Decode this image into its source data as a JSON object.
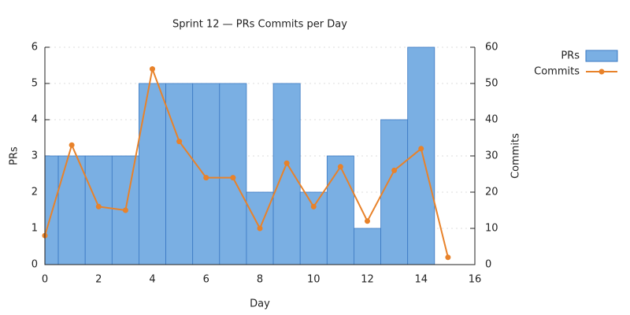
{
  "chart_data": {
    "type": "combo",
    "title": "Sprint 12 — PRs  Commits per Day",
    "xlabel": "Day",
    "ylabel": "PRs",
    "y2label": "Commits",
    "xlim": [
      0,
      16
    ],
    "xticks": [
      0,
      2,
      4,
      6,
      8,
      10,
      12,
      14,
      16
    ],
    "ylim": [
      0,
      6
    ],
    "yticks": [
      0,
      1,
      2,
      3,
      4,
      5,
      6
    ],
    "y2lim": [
      0,
      60
    ],
    "y2ticks": [
      0,
      10,
      20,
      30,
      40,
      50,
      60
    ],
    "grid": true,
    "legend": "outside-right",
    "series": [
      {
        "name": "PRs",
        "type": "bar",
        "color": "#7aafe3",
        "x": [
          0,
          1,
          2,
          3,
          4,
          5,
          6,
          7,
          8,
          9,
          10,
          11,
          12,
          13,
          14
        ],
        "values": [
          3,
          3,
          3,
          3,
          5,
          5,
          5,
          5,
          2,
          5,
          2,
          3,
          1,
          4,
          6
        ]
      },
      {
        "name": "Commits",
        "type": "line",
        "axis": "y2",
        "color": "#e8822a",
        "x": [
          0,
          1,
          2,
          3,
          4,
          5,
          6,
          7,
          8,
          9,
          10,
          11,
          12,
          13,
          14,
          15
        ],
        "values": [
          8,
          33,
          16,
          15,
          54,
          34,
          24,
          24,
          10,
          28,
          16,
          27,
          12,
          26,
          32,
          2
        ]
      }
    ]
  }
}
